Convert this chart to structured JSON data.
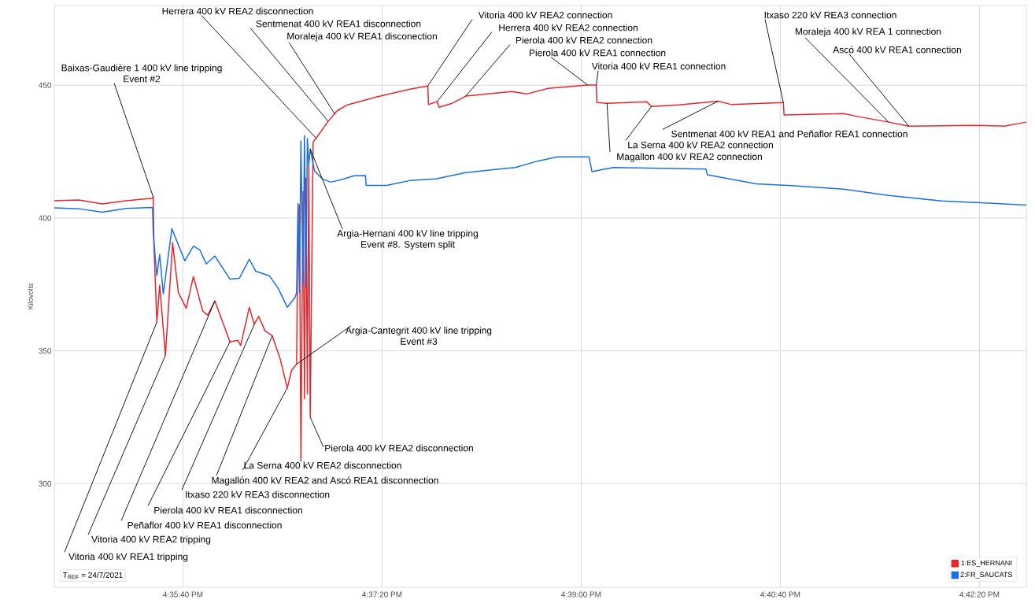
{
  "chart_data": {
    "type": "line",
    "ylabel": "Kilovolts",
    "xlim": [
      16.5765,
      16.7121
    ],
    "ylim": [
      261,
      480
    ],
    "xticks": [
      {
        "value": 16.594444,
        "label": "4:35:40 PM"
      },
      {
        "value": 16.622222,
        "label": "4:37:20 PM"
      },
      {
        "value": 16.65,
        "label": "4:39:00 PM"
      },
      {
        "value": 16.677778,
        "label": "4:40:40 PM"
      },
      {
        "value": 16.705556,
        "label": "4:42:20 PM"
      }
    ],
    "yticks": [
      300,
      350,
      400,
      450
    ],
    "grid": true,
    "legend": "bottom right",
    "series": [
      {
        "name": "1:ES_HERNANI",
        "color": "#e8262b",
        "x": [
          16.5765,
          16.5799,
          16.5832,
          16.5865,
          16.5902,
          16.5903,
          16.5904,
          16.5908,
          16.5912,
          16.592,
          16.593,
          16.5938,
          16.5949,
          16.5959,
          16.5972,
          16.5979,
          16.5989,
          16.601,
          16.6021,
          16.6025,
          16.6037,
          16.6044,
          16.605,
          16.6059,
          16.6069,
          16.608,
          16.609,
          16.6096,
          16.6103,
          16.6105,
          16.6107,
          16.6109,
          16.6112,
          16.6114,
          16.6116,
          16.6118,
          16.612,
          16.6122,
          16.6126,
          16.613,
          16.6147,
          16.6156,
          16.616,
          16.6174,
          16.6215,
          16.6261,
          16.6286,
          16.6287,
          16.6299,
          16.6302,
          16.632,
          16.6339,
          16.6403,
          16.6424,
          16.6454,
          16.6509,
          16.6521,
          16.6522,
          16.6536,
          16.6591,
          16.6598,
          16.6636,
          16.6691,
          16.671,
          16.6782,
          16.6783,
          16.6866,
          16.6888,
          16.6929,
          16.6957,
          16.7048,
          16.709,
          16.7121
        ],
        "values": [
          406.5,
          406.8,
          405.3,
          406.5,
          407.5,
          408,
          390,
          360.8,
          374.7,
          348.3,
          390.7,
          372,
          366,
          378,
          365,
          363.4,
          368.8,
          353.4,
          354,
          352,
          366.4,
          360,
          363,
          357.5,
          355.7,
          347,
          336,
          342.7,
          345,
          400,
          405,
          308.6,
          410,
          332,
          415,
          333.8,
          420,
          325,
          428.6,
          430,
          436.4,
          439.3,
          440.5,
          442.6,
          445.6,
          448.5,
          449.7,
          442.7,
          443.8,
          441.7,
          443.2,
          445.9,
          447.6,
          446.7,
          448.8,
          450.1,
          450.1,
          443.5,
          443.2,
          443.8,
          442,
          442.6,
          444,
          442.7,
          443.5,
          438.8,
          439.3,
          438.1,
          436.1,
          434.6,
          434.9,
          434.6,
          436.1
        ]
      },
      {
        "name": "2:FR_SAUCATS",
        "color": "#1a6fe8",
        "x": [
          16.5765,
          16.5799,
          16.5832,
          16.5865,
          16.5902,
          16.5903,
          16.5908,
          16.5912,
          16.5917,
          16.5929,
          16.5947,
          16.5959,
          16.5968,
          16.5977,
          16.5989,
          16.601,
          16.6023,
          16.6037,
          16.6046,
          16.6065,
          16.6078,
          16.609,
          16.6101,
          16.6103,
          16.6105,
          16.6107,
          16.6109,
          16.6112,
          16.6114,
          16.6116,
          16.6118,
          16.612,
          16.6122,
          16.6128,
          16.6139,
          16.6151,
          16.6169,
          16.6183,
          16.6199,
          16.62,
          16.6229,
          16.6261,
          16.6297,
          16.6339,
          16.638,
          16.6408,
          16.644,
          16.6467,
          16.6511,
          16.6515,
          16.6545,
          16.6674,
          16.6676,
          16.6744,
          16.6788,
          16.6866,
          16.6929,
          16.7003,
          16.7063,
          16.7121
        ],
        "values": [
          403.8,
          403.5,
          402.2,
          403.6,
          404,
          394.3,
          378.3,
          386.3,
          371.4,
          396,
          383.9,
          389.4,
          388,
          382.7,
          385.7,
          377,
          377.3,
          384.5,
          380,
          378.3,
          373.2,
          366.4,
          370.2,
          372,
          405.5,
          372,
          429,
          375,
          431,
          374,
          430,
          420,
          426,
          417.7,
          414.7,
          413.5,
          414.7,
          415.9,
          416,
          412.3,
          412.3,
          414.1,
          414.7,
          417.1,
          418.3,
          419,
          421.5,
          423,
          423,
          417.5,
          419,
          418.4,
          416.3,
          412.9,
          412.3,
          410.9,
          408.5,
          406.4,
          405.7,
          404.9
        ]
      }
    ],
    "annotations": [
      {
        "text": "Baixas-Gaudière 1 400 kV line tripping",
        "x": 16.5903,
        "y": 407.9
      },
      "Event #2",
      {
        "text": "Herrera 400 kV REA2 disconnection",
        "x": 16.613,
        "y": 430.1
      },
      {
        "text": "Sentmenat 400 kV REA1 disconnection",
        "x": 16.6147,
        "y": 436.4
      },
      {
        "text": "Moraleja 400 kV REA1 disconection",
        "x": 16.6156,
        "y": 439.3
      },
      {
        "text": "Vitoria 400 kV REA2 connection",
        "x": 16.6286,
        "y": 449.7
      },
      {
        "text": "Herrera 400 kV REA2 connection",
        "x": 16.6299,
        "y": 443.8
      },
      {
        "text": "Pierola 400 kV REA2 connection",
        "x": 16.6339,
        "y": 445.9
      },
      {
        "text": "Pierola 400 kV REA1 connection",
        "x": 16.6509,
        "y": 450.1
      },
      {
        "text": "Vitoria 400 kV REA1 connection",
        "x": 16.6521,
        "y": 450.1
      },
      {
        "text": "Itxaso 220 kV REA3 connection",
        "x": 16.6782,
        "y": 443.5
      },
      {
        "text": "Moraleja 400 kV REA 1 connection",
        "x": 16.6929,
        "y": 436.1
      },
      {
        "text": "Ascó 400 kV REA1 connection",
        "x": 16.6957,
        "y": 434.6
      },
      {
        "text": "Sentmenat 400 kV REA1 and Peñaflor REA1 connection",
        "x": 16.6691,
        "y": 444
      },
      {
        "text": "La Serna 400 kV REA2 connection",
        "x": 16.6598,
        "y": 442
      },
      {
        "text": "Magallon 400 kV REA2 connection",
        "x": 16.6536,
        "y": 443.2
      },
      {
        "text": "Argia-Hernani 400 kV line tripping",
        "x": 16.6122,
        "y": 426
      },
      "Event #8. System split",
      {
        "text": "Argia-Cantegrit 400 kV line tripping",
        "x": 16.6103,
        "y": 345
      },
      "Event #3",
      {
        "text": "Pierola 400 kV REA2 disconnection",
        "x": 16.6122,
        "y": 325
      },
      {
        "text": "La Serna 400 kV REA2 disconnection",
        "x": 16.609,
        "y": 336
      },
      {
        "text": "Magallón 400 kV REA2 and Ascó REA1 disconnection",
        "x": 16.6069,
        "y": 355.7
      },
      {
        "text": "Itxaso 220 kV REA3 disconnection",
        "x": 16.6044,
        "y": 360
      },
      {
        "text": "Pierola 400 kV REA1 disconnection",
        "x": 16.601,
        "y": 353.4
      },
      {
        "text": "Peñaflor 400 kV REA1 disconnection",
        "x": 16.5989,
        "y": 368.8
      },
      {
        "text": "Vitoria 400 kV REA2 tripping",
        "x": 16.592,
        "y": 348.3
      },
      {
        "text": "Vitoria 400 kV REA1 tripping",
        "x": 16.5908,
        "y": 360.8
      },
      "T$_{REF}$ = 24/7/2021"
    ]
  }
}
